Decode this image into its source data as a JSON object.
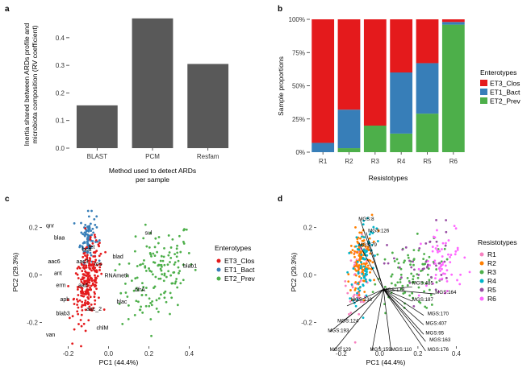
{
  "panels": {
    "a": {
      "letter": "a"
    },
    "b": {
      "letter": "b"
    },
    "c": {
      "letter": "c"
    },
    "d": {
      "letter": "d"
    }
  },
  "colors": {
    "ET3_Clos": "#e41a1c",
    "ET1_Bact": "#377eb8",
    "ET2_Prev": "#4daf4a",
    "bar_gray": "#595959",
    "R1": "#f781bf",
    "R2": "#ff7f00",
    "R3": "#4daf4a",
    "R4": "#00b3c8",
    "R5": "#984ea3",
    "R6": "#ff66ff"
  },
  "chart_data": [
    {
      "id": "a",
      "type": "bar",
      "categories": [
        "BLAST",
        "PCM",
        "Resfam"
      ],
      "values": [
        0.155,
        0.47,
        0.305
      ],
      "xlabel_line1": "Method used to detect ARDs",
      "xlabel_line2": "per sample",
      "ylabel_line1": "Inertia shared between ARDs profile and",
      "ylabel_line2": "microbiota composition (RV coefficient)",
      "ylim": [
        0,
        0.49
      ],
      "yticks": [
        "0.0",
        "0.1",
        "0.2",
        "0.3",
        "0.4"
      ]
    },
    {
      "id": "b",
      "type": "bar",
      "stacked": true,
      "categories": [
        "R1",
        "R2",
        "R3",
        "R4",
        "R5",
        "R6"
      ],
      "series": [
        {
          "name": "ET2_Prev",
          "values": [
            0,
            3,
            20,
            14,
            29,
            96
          ]
        },
        {
          "name": "ET1_Bact",
          "values": [
            7,
            29,
            0,
            46,
            38,
            2
          ]
        },
        {
          "name": "ET3_Clos",
          "values": [
            93,
            68,
            80,
            40,
            33,
            2
          ]
        }
      ],
      "xlabel": "Resistotypes",
      "ylabel": "Sample proportions",
      "yticks": [
        "0%",
        "25%",
        "50%",
        "75%",
        "100%"
      ],
      "ylim": [
        0,
        100
      ],
      "legend_title": "Enterotypes",
      "legend": [
        "ET3_Clos",
        "ET1_Bact",
        "ET2_Prev"
      ]
    },
    {
      "id": "c",
      "type": "scatter",
      "xlabel": "PC1 (44.4%)",
      "ylabel": "PC2 (29.3%)",
      "xlim": [
        -0.33,
        0.47
      ],
      "ylim": [
        -0.3,
        0.27
      ],
      "xticks": [
        "-0.2",
        "0.0",
        "0.2",
        "0.4"
      ],
      "yticks": [
        "-0.2",
        "0.0",
        "0.2"
      ],
      "legend_title": "Enterotypes",
      "legend": [
        "ET3_Clos",
        "ET1_Bact",
        "ET2_Prev"
      ],
      "gene_labels": [
        {
          "text": "qnr",
          "x": -0.31,
          "y": 0.2
        },
        {
          "text": "blaa",
          "x": -0.27,
          "y": 0.15
        },
        {
          "text": "aac6",
          "x": -0.3,
          "y": 0.05
        },
        {
          "text": "ant",
          "x": -0.27,
          "y": 0.0
        },
        {
          "text": "erm",
          "x": -0.26,
          "y": -0.05
        },
        {
          "text": "aph",
          "x": -0.24,
          "y": -0.11
        },
        {
          "text": "blab3",
          "x": -0.26,
          "y": -0.17
        },
        {
          "text": "van",
          "x": -0.31,
          "y": -0.26
        },
        {
          "text": "sul",
          "x": 0.18,
          "y": 0.17
        },
        {
          "text": "blab1",
          "x": 0.37,
          "y": 0.03
        },
        {
          "text": "blad",
          "x": 0.02,
          "y": 0.07
        },
        {
          "text": "tet",
          "x": -0.1,
          "y": 0.11
        },
        {
          "text": "aac3",
          "x": -0.16,
          "y": 0.05
        },
        {
          "text": "bca",
          "x": -0.13,
          "y": 0.1
        },
        {
          "text": "tos",
          "x": -0.07,
          "y": 0.04
        },
        {
          "text": "RNAmeth",
          "x": -0.02,
          "y": -0.01
        },
        {
          "text": "dfrA",
          "x": 0.13,
          "y": -0.07
        },
        {
          "text": "blac",
          "x": 0.04,
          "y": -0.12
        },
        {
          "text": "aad",
          "x": -0.15,
          "y": -0.05
        },
        {
          "text": "aac_2",
          "x": -0.11,
          "y": -0.15
        },
        {
          "text": "chlM",
          "x": -0.06,
          "y": -0.23
        }
      ]
    },
    {
      "id": "d",
      "type": "scatter",
      "xlabel": "PC1 (44.4%)",
      "ylabel": "PC2 (29.3%)",
      "xlim": [
        -0.33,
        0.47
      ],
      "ylim": [
        -0.3,
        0.27
      ],
      "xticks": [
        "-0.2",
        "0.0",
        "0.2",
        "0.4"
      ],
      "yticks": [
        "-0.2",
        "0.0",
        "0.2"
      ],
      "legend_title": "Resistotypes",
      "legend": [
        "R1",
        "R2",
        "R3",
        "R4",
        "R5",
        "R6"
      ],
      "mgs_labels": [
        {
          "text": "MGS:8",
          "x": -0.11,
          "y": 0.23
        },
        {
          "text": "MGS:126",
          "x": -0.06,
          "y": 0.18
        },
        {
          "text": "MGS:79",
          "x": -0.11,
          "y": 0.12
        },
        {
          "text": "MGS:178",
          "x": 0.02,
          "y": -0.07
        },
        {
          "text": "MGS:485",
          "x": 0.17,
          "y": -0.04
        },
        {
          "text": "MGS:164",
          "x": 0.29,
          "y": -0.08
        },
        {
          "text": "MGS:138",
          "x": -0.15,
          "y": -0.11
        },
        {
          "text": "MGS:187",
          "x": 0.17,
          "y": -0.11
        },
        {
          "text": "MGS:170",
          "x": 0.25,
          "y": -0.17
        },
        {
          "text": "MGS:124",
          "x": -0.22,
          "y": -0.2
        },
        {
          "text": "MGS:193",
          "x": -0.27,
          "y": -0.24
        },
        {
          "text": "MGS:407",
          "x": 0.24,
          "y": -0.21
        },
        {
          "text": "MGS:95",
          "x": 0.24,
          "y": -0.25
        },
        {
          "text": "MGS:163",
          "x": 0.26,
          "y": -0.28
        },
        {
          "text": "MGS:129",
          "x": -0.26,
          "y": -0.32
        },
        {
          "text": "MGS:159",
          "x": -0.05,
          "y": -0.32
        },
        {
          "text": "MGS:110",
          "x": 0.06,
          "y": -0.32
        },
        {
          "text": "MGS:176",
          "x": 0.25,
          "y": -0.32
        }
      ],
      "arrows": [
        {
          "x": -0.17,
          "y": -0.13
        },
        {
          "x": -0.2,
          "y": -0.2
        },
        {
          "x": -0.26,
          "y": -0.24
        },
        {
          "x": -0.24,
          "y": -0.32
        },
        {
          "x": -0.04,
          "y": -0.32
        },
        {
          "x": 0.06,
          "y": -0.32
        },
        {
          "x": 0.24,
          "y": -0.32
        },
        {
          "x": 0.24,
          "y": -0.28
        },
        {
          "x": 0.23,
          "y": -0.25
        },
        {
          "x": 0.23,
          "y": -0.21
        },
        {
          "x": 0.23,
          "y": -0.17
        },
        {
          "x": 0.17,
          "y": -0.11
        },
        {
          "x": 0.17,
          "y": -0.05
        },
        {
          "x": 0.29,
          "y": -0.08
        },
        {
          "x": 0.02,
          "y": -0.07
        },
        {
          "x": -0.1,
          "y": 0.12
        },
        {
          "x": -0.07,
          "y": 0.18
        },
        {
          "x": -0.1,
          "y": 0.23
        }
      ]
    }
  ]
}
